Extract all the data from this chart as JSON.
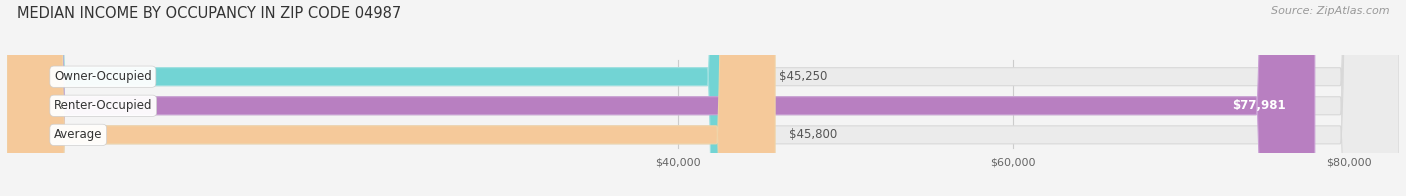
{
  "title": "MEDIAN INCOME BY OCCUPANCY IN ZIP CODE 04987",
  "source": "Source: ZipAtlas.com",
  "categories": [
    "Owner-Occupied",
    "Renter-Occupied",
    "Average"
  ],
  "values": [
    45250,
    77981,
    45800
  ],
  "bar_colors": [
    "#72d4d4",
    "#b87fc1",
    "#f5c99a"
  ],
  "bar_edge_colors": [
    "#9de0e0",
    "#c99fd4",
    "#f0d4a8"
  ],
  "value_labels": [
    "$45,250",
    "$77,981",
    "$45,800"
  ],
  "x_min": 0,
  "x_max": 83000,
  "x_ticks": [
    40000,
    60000,
    80000
  ],
  "x_tick_labels": [
    "$40,000",
    "$60,000",
    "$80,000"
  ],
  "background_color": "#f4f4f4",
  "bar_bg_color": "#ebebeb",
  "bar_bg_edge_color": "#d8d8d8",
  "title_fontsize": 10.5,
  "source_fontsize": 8,
  "label_fontsize": 8.5,
  "value_fontsize": 8.5
}
